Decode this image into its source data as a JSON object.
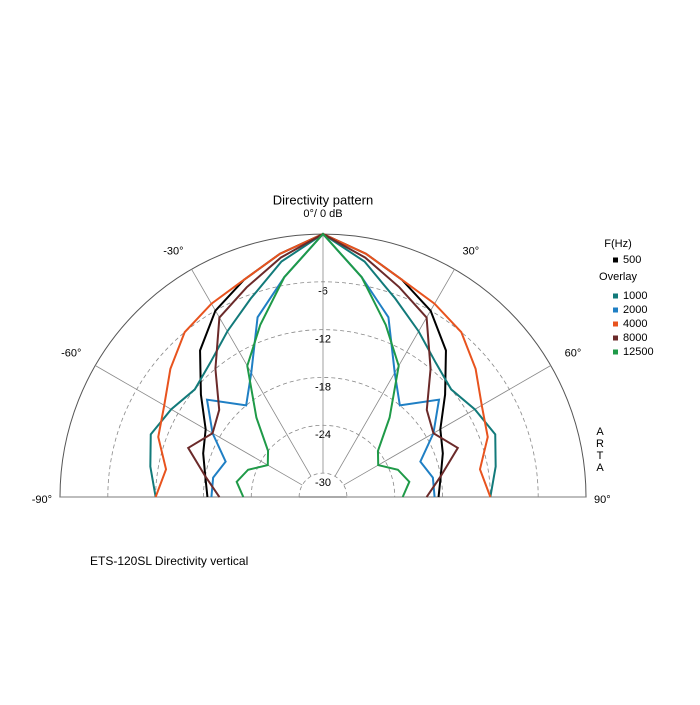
{
  "chart_data": {
    "type": "polar",
    "title": "Directivity pattern",
    "caption": "ETS-120SL   Directivity vertical",
    "watermark": "ARTA",
    "legend_title": "F(Hz)",
    "overlay_label": "Overlay",
    "rlim": [
      -33,
      0
    ],
    "rticks": [
      -6,
      -12,
      -18,
      -24,
      -30
    ],
    "thetalim": [
      -90,
      90
    ],
    "thetaticks": [
      {
        "value": -90,
        "label": "-90°"
      },
      {
        "value": -60,
        "label": "-60°"
      },
      {
        "value": -30,
        "label": "-30°"
      },
      {
        "value": 0,
        "label": "0°/ 0 dB"
      },
      {
        "value": 30,
        "label": "30°"
      },
      {
        "value": 60,
        "label": "60°"
      },
      {
        "value": 90,
        "label": "90°"
      }
    ],
    "theta": [
      -90,
      -80,
      -70,
      -60,
      -50,
      -40,
      -30,
      -20,
      -10,
      0,
      10,
      20,
      30,
      40,
      50,
      60,
      70,
      80,
      90
    ],
    "series": [
      {
        "name": "500",
        "color": "#000000",
        "values": [
          -18.5,
          -18,
          -17,
          -16,
          -13,
          -9,
          -6,
          -4,
          -2,
          0,
          -2,
          -4,
          -6,
          -9,
          -13,
          -16,
          -17,
          -18,
          -18.5
        ]
      },
      {
        "name": "1000",
        "color": "#127a7a",
        "values": [
          -12,
          -11,
          -10,
          -11,
          -12,
          -11,
          -9,
          -6.5,
          -3,
          0,
          -3,
          -6.5,
          -9,
          -11,
          -12,
          -11,
          -10,
          -11,
          -12
        ]
      },
      {
        "name": "2000",
        "color": "#1f7fc4",
        "values": [
          -19,
          -19,
          -20,
          -17,
          -14,
          -18,
          -15,
          -9,
          -5,
          0,
          -5,
          -9,
          -15,
          -18,
          -14,
          -17,
          -20,
          -19,
          -19
        ]
      },
      {
        "name": "4000",
        "color": "#e8531e",
        "values": [
          -12,
          -13,
          -11,
          -10,
          -8,
          -6,
          -5,
          -4,
          -2,
          0,
          -2,
          -4,
          -5,
          -6,
          -8,
          -10,
          -11,
          -13,
          -12
        ]
      },
      {
        "name": "8000",
        "color": "#6b2a2a",
        "values": [
          -20,
          -18,
          -15,
          -17,
          -16,
          -12,
          -7,
          -5,
          -2.5,
          0,
          -2.5,
          -5,
          -7,
          -12,
          -16,
          -17,
          -15,
          -18,
          -20
        ]
      },
      {
        "name": "12500",
        "color": "#1f9a48",
        "values": [
          -23,
          -22,
          -23,
          -25,
          -24,
          -20,
          -14,
          -10,
          -5,
          0,
          -5,
          -10,
          -14,
          -20,
          -24,
          -25,
          -23,
          -22,
          -23
        ]
      }
    ]
  }
}
